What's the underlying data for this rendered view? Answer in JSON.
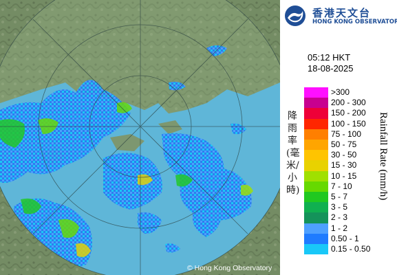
{
  "map": {
    "copyright": "© Hong Kong Observatory"
  },
  "logo": {
    "chinese_name": "香港天文台",
    "english_name": "HONG KONG OBSERVATORY",
    "icon": "hko-logo-icon"
  },
  "timestamp": {
    "time": "05:12 HKT",
    "date": "18-08-2025"
  },
  "legend": {
    "title_zh": "降雨率(毫米/小時)",
    "title_en": "Rainfall Rate (mm/h)",
    "items": [
      {
        "label": ">300",
        "color": "#ff10ff"
      },
      {
        "label": "200 - 300",
        "color": "#c80090"
      },
      {
        "label": "150 - 200",
        "color": "#ee0038"
      },
      {
        "label": "100 - 150",
        "color": "#ff2600"
      },
      {
        "label": "75 - 100",
        "color": "#ff7f00"
      },
      {
        "label": "50 - 75",
        "color": "#ffa500"
      },
      {
        "label": "30 - 50",
        "color": "#ffc400"
      },
      {
        "label": "15 - 30",
        "color": "#e8d200"
      },
      {
        "label": "10 - 15",
        "color": "#a0e000"
      },
      {
        "label": "7 - 10",
        "color": "#66d900"
      },
      {
        "label": "5 - 7",
        "color": "#20c820"
      },
      {
        "label": "3 - 5",
        "color": "#10b050"
      },
      {
        "label": "2 - 3",
        "color": "#14935a"
      },
      {
        "label": "1 - 2",
        "color": "#4ea0ff"
      },
      {
        "label": "0.50 - 1",
        "color": "#1f7bff"
      },
      {
        "label": "0.15 - 0.50",
        "color": "#19c8f8"
      }
    ]
  }
}
